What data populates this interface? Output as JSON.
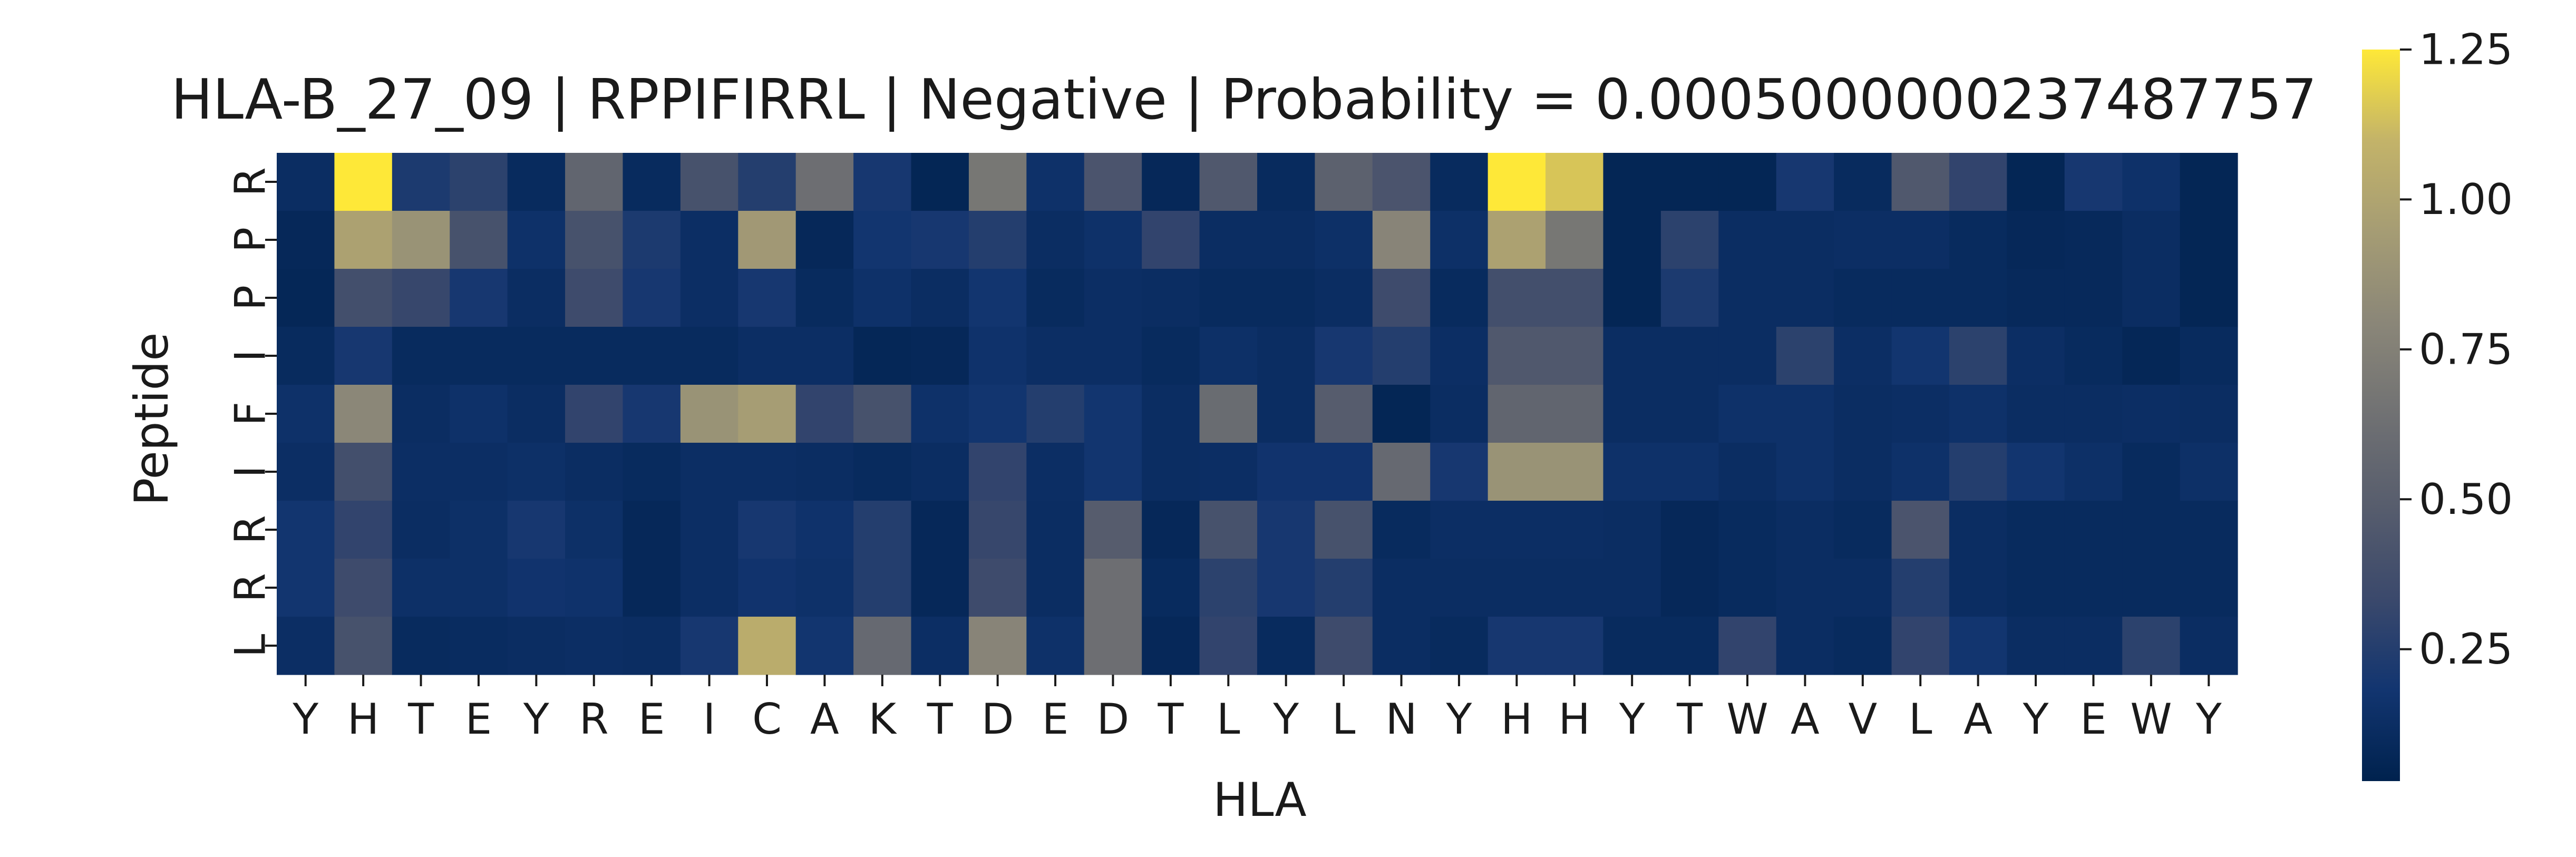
{
  "chart_data": {
    "type": "heatmap",
    "title": "HLA-B_27_09 | RPPIFIRRL | Negative | Probability = 0.0005000000237487757",
    "xlabel": "HLA",
    "ylabel": "Peptide",
    "x_categories": [
      "Y",
      "H",
      "T",
      "E",
      "Y",
      "R",
      "E",
      "I",
      "C",
      "A",
      "K",
      "T",
      "D",
      "E",
      "D",
      "T",
      "L",
      "Y",
      "L",
      "N",
      "Y",
      "H",
      "H",
      "Y",
      "T",
      "W",
      "A",
      "V",
      "L",
      "A",
      "Y",
      "E",
      "W",
      "Y"
    ],
    "y_categories": [
      "R",
      "P",
      "P",
      "I",
      "F",
      "I",
      "R",
      "R",
      "L"
    ],
    "colormap": "cividis",
    "vmin": 0.03,
    "vmax": 1.25,
    "colorbar_ticks": [
      0.25,
      0.5,
      0.75,
      1.0,
      1.25
    ],
    "colorbar_tick_labels": [
      "0.25",
      "0.50",
      "0.75",
      "1.00",
      "1.25"
    ],
    "values": [
      [
        0.12,
        1.25,
        0.22,
        0.28,
        0.1,
        0.55,
        0.1,
        0.4,
        0.25,
        0.62,
        0.2,
        0.06,
        0.68,
        0.15,
        0.42,
        0.08,
        0.45,
        0.1,
        0.52,
        0.42,
        0.1,
        1.25,
        1.15,
        0.06,
        0.06,
        0.06,
        0.2,
        0.1,
        0.45,
        0.3,
        0.06,
        0.2,
        0.15,
        0.06
      ],
      [
        0.08,
        0.98,
        0.88,
        0.4,
        0.15,
        0.4,
        0.22,
        0.13,
        0.92,
        0.08,
        0.18,
        0.2,
        0.25,
        0.12,
        0.15,
        0.3,
        0.12,
        0.12,
        0.14,
        0.78,
        0.14,
        0.98,
        0.68,
        0.06,
        0.28,
        0.12,
        0.12,
        0.13,
        0.13,
        0.1,
        0.08,
        0.09,
        0.12,
        0.06
      ],
      [
        0.07,
        0.38,
        0.32,
        0.2,
        0.12,
        0.35,
        0.2,
        0.13,
        0.2,
        0.1,
        0.15,
        0.12,
        0.18,
        0.1,
        0.13,
        0.12,
        0.1,
        0.1,
        0.12,
        0.35,
        0.1,
        0.38,
        0.38,
        0.06,
        0.22,
        0.12,
        0.12,
        0.1,
        0.1,
        0.1,
        0.09,
        0.09,
        0.12,
        0.06
      ],
      [
        0.1,
        0.2,
        0.1,
        0.1,
        0.1,
        0.1,
        0.1,
        0.1,
        0.13,
        0.13,
        0.07,
        0.08,
        0.16,
        0.13,
        0.13,
        0.1,
        0.14,
        0.12,
        0.2,
        0.25,
        0.13,
        0.45,
        0.45,
        0.12,
        0.12,
        0.12,
        0.28,
        0.13,
        0.18,
        0.28,
        0.13,
        0.1,
        0.07,
        0.1
      ],
      [
        0.15,
        0.8,
        0.12,
        0.15,
        0.12,
        0.3,
        0.2,
        0.88,
        0.95,
        0.3,
        0.4,
        0.15,
        0.18,
        0.25,
        0.18,
        0.12,
        0.6,
        0.12,
        0.48,
        0.06,
        0.12,
        0.55,
        0.55,
        0.12,
        0.12,
        0.15,
        0.15,
        0.12,
        0.13,
        0.15,
        0.12,
        0.12,
        0.13,
        0.12
      ],
      [
        0.13,
        0.38,
        0.13,
        0.13,
        0.14,
        0.12,
        0.1,
        0.13,
        0.13,
        0.12,
        0.1,
        0.12,
        0.3,
        0.13,
        0.18,
        0.12,
        0.13,
        0.17,
        0.17,
        0.58,
        0.2,
        0.88,
        0.88,
        0.15,
        0.15,
        0.12,
        0.15,
        0.12,
        0.15,
        0.25,
        0.18,
        0.14,
        0.1,
        0.14
      ],
      [
        0.18,
        0.3,
        0.12,
        0.14,
        0.2,
        0.14,
        0.08,
        0.13,
        0.2,
        0.16,
        0.25,
        0.08,
        0.32,
        0.12,
        0.48,
        0.08,
        0.4,
        0.2,
        0.4,
        0.1,
        0.13,
        0.13,
        0.13,
        0.12,
        0.08,
        0.1,
        0.12,
        0.1,
        0.42,
        0.12,
        0.1,
        0.1,
        0.1,
        0.1
      ],
      [
        0.18,
        0.35,
        0.14,
        0.14,
        0.17,
        0.16,
        0.08,
        0.13,
        0.17,
        0.15,
        0.25,
        0.08,
        0.35,
        0.12,
        0.62,
        0.1,
        0.28,
        0.2,
        0.25,
        0.12,
        0.12,
        0.12,
        0.12,
        0.12,
        0.08,
        0.1,
        0.12,
        0.12,
        0.25,
        0.12,
        0.1,
        0.1,
        0.1,
        0.1
      ],
      [
        0.13,
        0.4,
        0.1,
        0.11,
        0.12,
        0.13,
        0.12,
        0.2,
        1.05,
        0.18,
        0.58,
        0.13,
        0.78,
        0.15,
        0.62,
        0.08,
        0.3,
        0.1,
        0.35,
        0.12,
        0.1,
        0.2,
        0.2,
        0.1,
        0.1,
        0.3,
        0.12,
        0.1,
        0.3,
        0.18,
        0.12,
        0.12,
        0.28,
        0.12
      ]
    ]
  }
}
